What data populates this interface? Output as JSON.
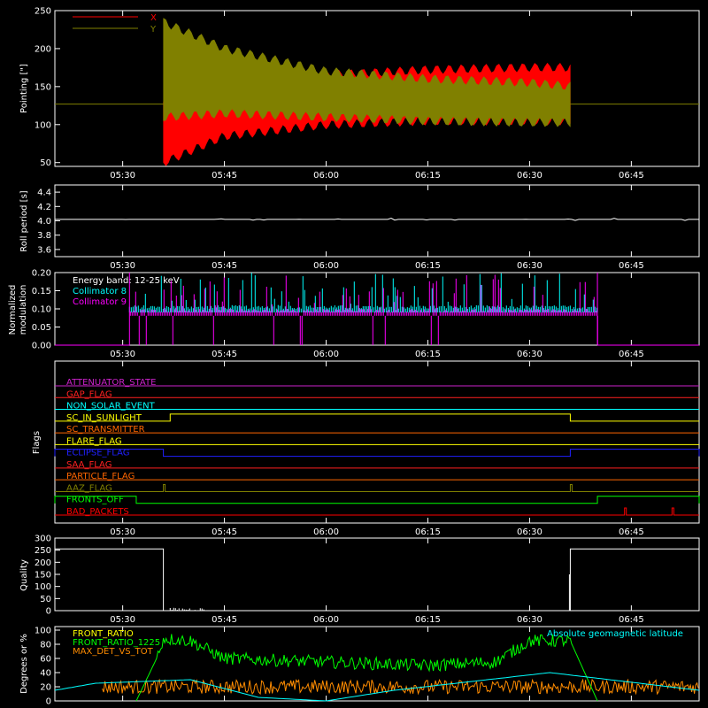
{
  "x_ticks": [
    "05:30",
    "05:45",
    "06:00",
    "06:15",
    "06:30",
    "06:45"
  ],
  "chart_data": [
    {
      "id": "pointing",
      "type": "area",
      "ylabel": "Pointing [\"]",
      "yticks": [
        "250",
        "200",
        "150",
        "100",
        "50"
      ],
      "ylim": [
        45,
        250
      ],
      "legend": [
        {
          "name": "X",
          "color": "#ff0000"
        },
        {
          "name": "Y",
          "color": "#808000"
        }
      ],
      "baseline_value": 127,
      "series": [
        {
          "name": "X",
          "color": "#ff0000",
          "times": [
            "05:36",
            "05:45",
            "06:00",
            "06:15",
            "06:30",
            "06:36"
          ],
          "upper": [
            130,
            150,
            165,
            172,
            175,
            175
          ],
          "lower": [
            50,
            85,
            100,
            105,
            105,
            105
          ]
        },
        {
          "name": "Y",
          "color": "#808000",
          "times": [
            "05:36",
            "05:45",
            "06:00",
            "06:15",
            "06:30",
            "06:36"
          ],
          "upper": [
            235,
            200,
            170,
            160,
            155,
            150
          ],
          "lower": [
            110,
            115,
            110,
            105,
            103,
            103
          ]
        }
      ]
    },
    {
      "id": "roll",
      "type": "line",
      "ylabel": "Roll period [s]",
      "yticks": [
        "4.4",
        "4.2",
        "4.0",
        "3.8",
        "3.6"
      ],
      "ylim": [
        3.5,
        4.5
      ],
      "series": [
        {
          "name": "roll",
          "color": "#ffffff",
          "value": 4.02
        }
      ]
    },
    {
      "id": "modulation",
      "type": "bar",
      "ylabel": "Normalized modulation",
      "yticks": [
        "0.20",
        "0.15",
        "0.10",
        "0.05",
        "0.00"
      ],
      "ylim": [
        0,
        0.2
      ],
      "annotation": "Energy band: 12-25 keV",
      "legend": [
        {
          "name": "Collimator 8",
          "color": "#00ffff"
        },
        {
          "name": "Collimator 9",
          "color": "#ff00ff"
        }
      ],
      "active_range": [
        "05:31",
        "06:40"
      ],
      "series": [
        {
          "name": "Collimator 8",
          "color": "#00ffff",
          "typical": 0.1,
          "max": 0.2
        },
        {
          "name": "Collimator 9",
          "color": "#ff00ff",
          "typical": 0.09,
          "max": 0.2
        }
      ]
    },
    {
      "id": "flags",
      "type": "line",
      "ylabel": "Flags",
      "series": [
        {
          "name": "ATTENUATOR_STATE",
          "color": "#cc22cc",
          "steps": []
        },
        {
          "name": "GAP_FLAG",
          "color": "#ff2020",
          "steps": []
        },
        {
          "name": "NON_SOLAR_EVENT",
          "color": "#00ffff",
          "steps": []
        },
        {
          "name": "SC_IN_SUNLIGHT",
          "color": "#ffff00",
          "steps": [
            [
              "05:37",
              "06:36"
            ]
          ]
        },
        {
          "name": "SC_TRANSMITTER",
          "color": "#ff6600",
          "steps": []
        },
        {
          "name": "FLARE_FLAG",
          "color": "#ffff00",
          "steps": []
        },
        {
          "name": "ECLIPSE_FLAG",
          "color": "#2020ff",
          "steps": [
            [
              "05:20",
              "05:36"
            ],
            [
              "06:36",
              "06:55"
            ]
          ]
        },
        {
          "name": "SAA_FLAG",
          "color": "#ff2020",
          "steps": []
        },
        {
          "name": "PARTICLE_FLAG",
          "color": "#ff6600",
          "steps": []
        },
        {
          "name": "AAZ_FLAG",
          "color": "#808000",
          "steps": [
            [
              "05:36",
              "05:36"
            ],
            [
              "06:36",
              "06:36"
            ]
          ]
        },
        {
          "name": "FRONTS_OFF",
          "color": "#00ff00",
          "steps": [
            [
              "05:20",
              "05:32"
            ],
            [
              "06:40",
              "06:55"
            ]
          ]
        },
        {
          "name": "BAD_PACKETS",
          "color": "#ff0000",
          "steps": [
            [
              "06:44",
              "06:44"
            ],
            [
              "06:51",
              "06:51"
            ]
          ]
        }
      ]
    },
    {
      "id": "quality",
      "type": "line",
      "ylabel": "Quality",
      "yticks": [
        "300",
        "250",
        "200",
        "150",
        "100",
        "50",
        "0"
      ],
      "ylim": [
        0,
        300
      ],
      "series": [
        {
          "name": "quality",
          "color": "#ffffff",
          "times": [
            "05:20",
            "05:36",
            "05:36",
            "06:36",
            "06:36",
            "06:55"
          ],
          "values": [
            255,
            255,
            0,
            0,
            255,
            255
          ]
        }
      ]
    },
    {
      "id": "ratios",
      "type": "line",
      "ylabel": "Degrees or %",
      "yticks": [
        "100",
        "80",
        "60",
        "40",
        "20",
        "0"
      ],
      "ylim": [
        0,
        105
      ],
      "legend": [
        {
          "name": "FRONT_RATIO",
          "color": "#ffff00"
        },
        {
          "name": "FRONT_RATIO_1225",
          "color": "#00ff00"
        },
        {
          "name": "MAX_DET_VS_TOT",
          "color": "#ff8c00"
        }
      ],
      "annotation": "Absolute geomagnetic latitude",
      "annotation_color": "#00ffff",
      "series": [
        {
          "name": "FRONT_RATIO_1225",
          "color": "#00ff00",
          "times": [
            "05:32",
            "05:35",
            "05:36",
            "05:40",
            "05:45",
            "06:00",
            "06:15",
            "06:25",
            "06:30",
            "06:36",
            "06:40"
          ],
          "values": [
            0,
            60,
            88,
            85,
            60,
            55,
            50,
            55,
            85,
            85,
            0
          ]
        },
        {
          "name": "MAX_DET_VS_TOT",
          "color": "#ff8c00",
          "mean": 20
        },
        {
          "name": "Absolute geomagnetic latitude",
          "color": "#00ffff",
          "times": [
            "05:20",
            "05:26",
            "05:40",
            "05:50",
            "06:00",
            "06:10",
            "06:33",
            "06:55"
          ],
          "values": [
            15,
            25,
            30,
            5,
            0,
            15,
            40,
            15
          ]
        }
      ]
    }
  ]
}
